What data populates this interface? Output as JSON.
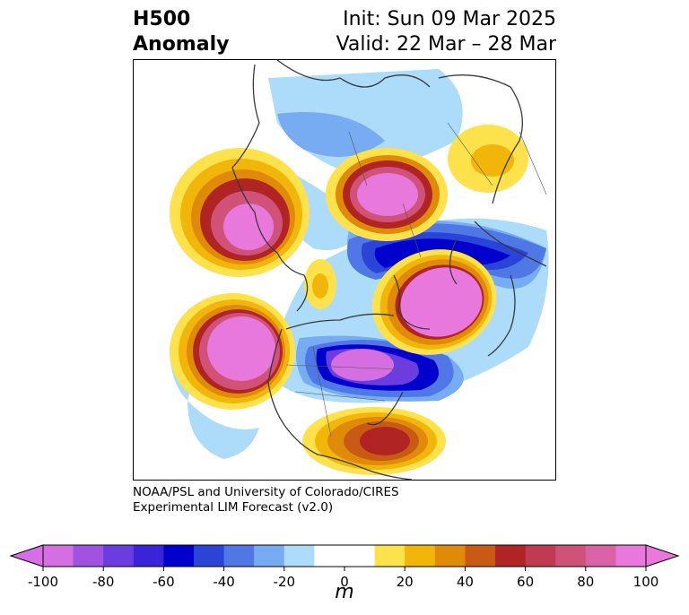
{
  "title": {
    "left_line1": "H500",
    "left_line2": "Anomaly",
    "right_line1": "Init: Sun 09 Mar 2025",
    "right_line2": "Valid: 22 Mar – 28 Mar"
  },
  "credit": {
    "line1": "NOAA/PSL and University of Colorado/CIRES",
    "line2": "Experimental LIM Forecast (v2.0)"
  },
  "colorbar": {
    "unit": "m",
    "ticks": [
      "-100",
      "-80",
      "-60",
      "-40",
      "-20",
      "0",
      "20",
      "40",
      "60",
      "80",
      "100"
    ],
    "colors": [
      "#d56ee0",
      "#a052e0",
      "#6b3ce0",
      "#3a24d8",
      "#0000cc",
      "#2a44d8",
      "#4f78e6",
      "#78acf2",
      "#acdcfa",
      "#ffffff",
      "#ffffff",
      "#fde24c",
      "#f2b50a",
      "#e08a0a",
      "#c85a14",
      "#b02424",
      "#c03a52",
      "#d05278",
      "#dc62a8",
      "#e878dc"
    ],
    "under_color": "#d86ee6",
    "over_color": "#e878dc"
  }
}
